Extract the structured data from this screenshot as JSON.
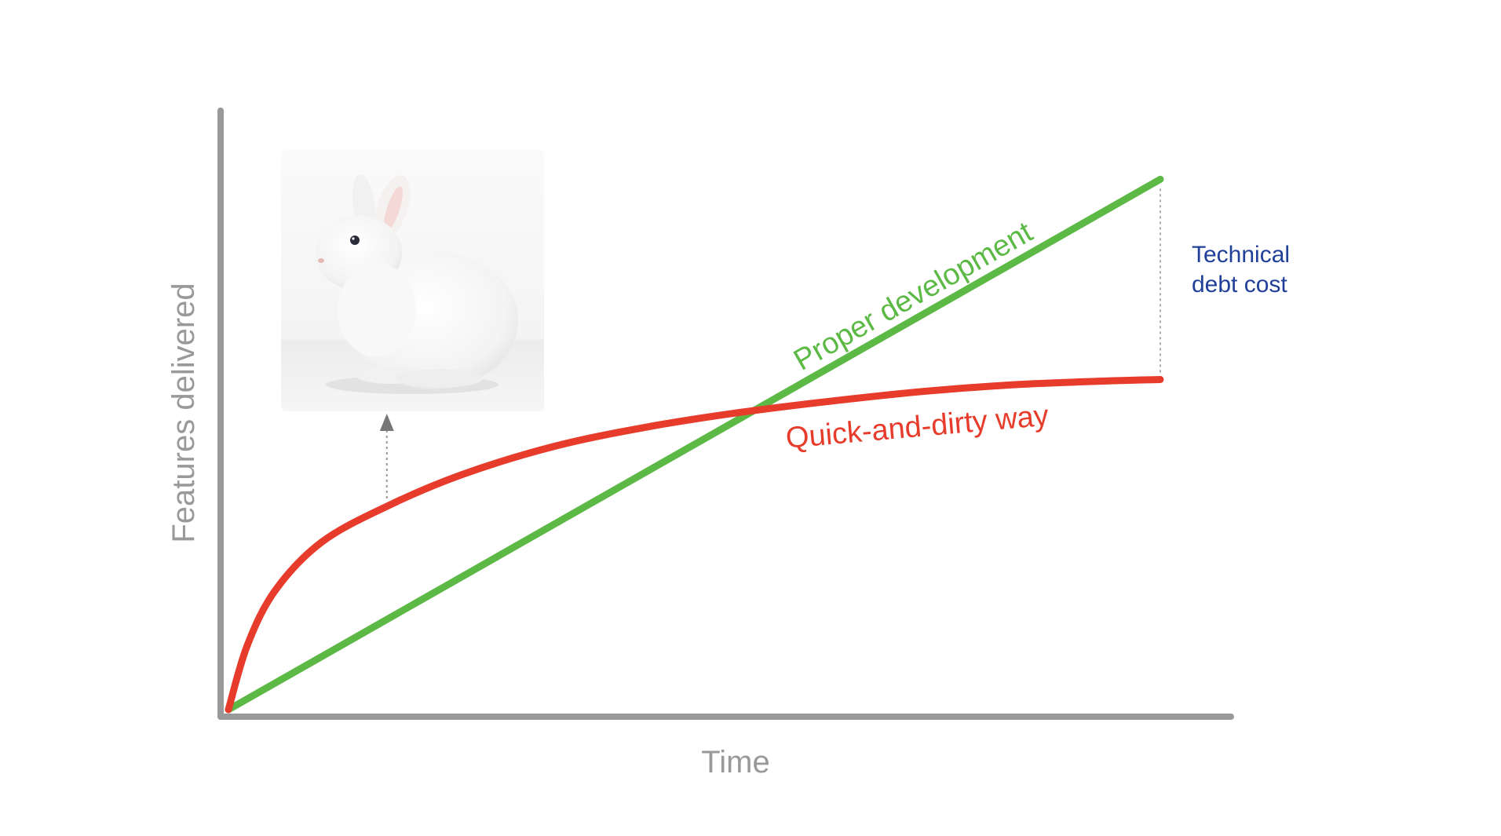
{
  "chart_data": {
    "type": "line",
    "title": "",
    "xlabel": "Time",
    "ylabel": "Features delivered",
    "xlim": [
      0,
      100
    ],
    "ylim": [
      0,
      100
    ],
    "grid": false,
    "legend": "none",
    "series": [
      {
        "name": "Proper development",
        "color": "#5cb946",
        "x": [
          0,
          100
        ],
        "y": [
          0,
          87.4
        ]
      },
      {
        "name": "Quick-and-dirty way",
        "color": "#e73b2c",
        "x": [
          0,
          2,
          5,
          10,
          17,
          25,
          35,
          45,
          55,
          65,
          75,
          85,
          95,
          100
        ],
        "y": [
          0,
          10.5,
          19.6,
          27.6,
          33.5,
          38.7,
          43.4,
          46.6,
          49.0,
          50.9,
          52.5,
          53.6,
          54.2,
          54.4
        ]
      }
    ],
    "annotations": [
      {
        "text": "Technical debt cost",
        "lines": [
          "Technical",
          "debt cost"
        ],
        "color": "#1f3f99",
        "x": 100
      },
      {
        "kind": "image",
        "subject": "white-rabbit",
        "x": 17
      }
    ]
  },
  "colors": {
    "axis": "#999999",
    "arrow": "#777777"
  }
}
